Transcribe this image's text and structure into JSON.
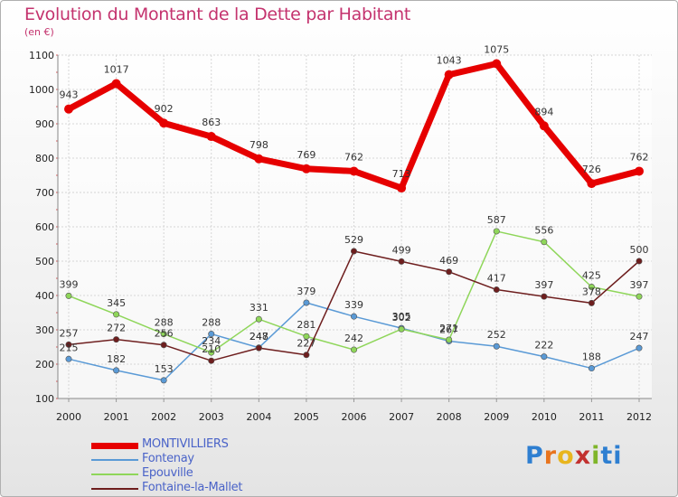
{
  "header": {
    "title": "Evolution du Montant de la Dette par Habitant",
    "subtitle": "(en €)"
  },
  "logo": {
    "letters": [
      "P",
      "r",
      "o",
      "x",
      "i",
      "t",
      "i"
    ],
    "colors": [
      "#2e7fd1",
      "#e8741e",
      "#e8b51e",
      "#c2312f",
      "#7fb52a",
      "#2e7fd1",
      "#2e7fd1"
    ]
  },
  "chart_data": {
    "type": "line",
    "title": "Evolution du Montant de la Dette par Habitant",
    "ylabel": "(en €)",
    "xlabel": "",
    "x": [
      "2000",
      "2001",
      "2002",
      "2003",
      "2004",
      "2005",
      "2006",
      "2007",
      "2008",
      "2009",
      "2010",
      "2011",
      "2012"
    ],
    "ylim": [
      100,
      1100
    ],
    "yticks": [
      100,
      200,
      300,
      400,
      500,
      600,
      700,
      800,
      900,
      1000,
      1100
    ],
    "grid": true,
    "legend_position": "bottom-left",
    "series": [
      {
        "name": "MONTIVILLIERS",
        "color": "#e60000",
        "values": [
          943,
          1017,
          902,
          863,
          798,
          769,
          762,
          713,
          1043,
          1075,
          894,
          726,
          762
        ]
      },
      {
        "name": "Fontenay",
        "color": "#5a9ad6",
        "values": [
          215,
          182,
          153,
          288,
          248,
          379,
          339,
          305,
          267,
          252,
          222,
          188,
          247
        ]
      },
      {
        "name": "Epouville",
        "color": "#8fd65a",
        "values": [
          399,
          345,
          288,
          234,
          331,
          281,
          242,
          302,
          271,
          587,
          556,
          425,
          397
        ]
      },
      {
        "name": "Fontaine-la-Mallet",
        "color": "#6e1e1e",
        "values": [
          257,
          272,
          256,
          210,
          247,
          227,
          529,
          499,
          469,
          417,
          397,
          378,
          500
        ]
      }
    ]
  }
}
